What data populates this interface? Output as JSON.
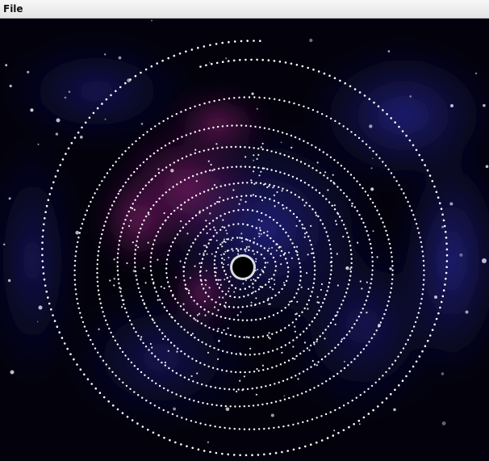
{
  "window": {
    "menu": {
      "items": [
        {
          "label": "File"
        }
      ]
    }
  },
  "simulation": {
    "description_hidden": false,
    "colors": {
      "space": "#03020c",
      "nebula_blue": "#1c1a7a",
      "nebula_magenta": "#7a1a6a",
      "particle": "#ffffff",
      "black_hole": "#000000"
    },
    "icons": {
      "black_hole": "black-hole-icon"
    }
  }
}
